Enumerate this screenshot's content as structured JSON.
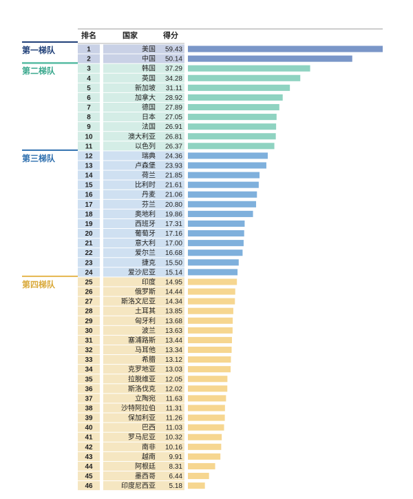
{
  "headers": {
    "rank": "排名",
    "country": "国家",
    "score": "得分"
  },
  "tiers": [
    {
      "label": "第一梯队",
      "from": 1,
      "to": 2,
      "color": "#1f3f78",
      "label_color": "#1f3f78",
      "row_bg": "#c9d1e6",
      "bar_color": "#7a96c8"
    },
    {
      "label": "第二梯队",
      "from": 3,
      "to": 11,
      "color": "#5ebfa7",
      "label_color": "#3aa88d",
      "row_bg": "#d4ede6",
      "bar_color": "#8fd3c1"
    },
    {
      "label": "第三梯队",
      "from": 12,
      "to": 24,
      "color": "#2e6fae",
      "label_color": "#2e6fae",
      "row_bg": "#cfe0f1",
      "bar_color": "#7fb0dc"
    },
    {
      "label": "第四梯队",
      "from": 25,
      "to": 46,
      "color": "#e5b64d",
      "label_color": "#d9a93a",
      "row_bg": "#f5e6c1",
      "bar_color": "#f6d690"
    }
  ],
  "chart_data": {
    "type": "bar",
    "orientation": "horizontal",
    "categories": [
      "美国",
      "中国",
      "韩国",
      "英国",
      "新加坡",
      "加拿大",
      "德国",
      "日本",
      "法国",
      "澳大利亚",
      "以色列",
      "瑞典",
      "卢森堡",
      "荷兰",
      "比利时",
      "丹麦",
      "芬兰",
      "奥地利",
      "西班牙",
      "葡萄牙",
      "意大利",
      "爱尔兰",
      "捷克",
      "爱沙尼亚",
      "印度",
      "俄罗斯",
      "斯洛文尼亚",
      "土耳其",
      "匈牙利",
      "波兰",
      "塞浦路斯",
      "马耳他",
      "希腊",
      "克罗地亚",
      "拉脱维亚",
      "斯洛伐克",
      "立陶宛",
      "沙特阿拉伯",
      "保加利亚",
      "巴西",
      "罗马尼亚",
      "南非",
      "越南",
      "阿根廷",
      "墨西哥",
      "印度尼西亚"
    ],
    "values": [
      59.43,
      50.14,
      37.29,
      34.28,
      31.11,
      28.92,
      27.89,
      27.05,
      26.91,
      26.81,
      26.37,
      24.36,
      23.93,
      21.85,
      21.61,
      21.06,
      20.8,
      19.86,
      17.31,
      17.16,
      17.0,
      16.68,
      15.5,
      15.14,
      14.95,
      14.44,
      14.34,
      13.85,
      13.68,
      13.63,
      13.44,
      13.34,
      13.12,
      13.03,
      12.05,
      12.02,
      11.63,
      11.31,
      11.26,
      11.03,
      10.32,
      10.16,
      9.91,
      8.31,
      6.44,
      5.18
    ],
    "value_labels": [
      "59.43",
      "50.14",
      "37.29",
      "34.28",
      "31.11",
      "28.92",
      "27.89",
      "27.05",
      "26.91",
      "26.81",
      "26.37",
      "24.36",
      "23.93",
      "21.85",
      "21.61",
      "21.06",
      "20.80",
      "19.86",
      "17.31",
      "17.16",
      "17.00",
      "16.68",
      "15.50",
      "15.14",
      "14.95",
      "14.44",
      "14.34",
      "13.85",
      "13.68",
      "13.63",
      "13.44",
      "13.34",
      "13.12",
      "13.03",
      "12.05",
      "12.02",
      "11.63",
      "11.31",
      "11.26",
      "11.03",
      "10.32",
      "10.16",
      "9.91",
      "8.31",
      "6.44",
      "5.18"
    ],
    "title": "",
    "xlabel": "",
    "ylabel": "",
    "xlim": [
      0,
      59.43
    ],
    "grid": false,
    "legend": "none"
  }
}
